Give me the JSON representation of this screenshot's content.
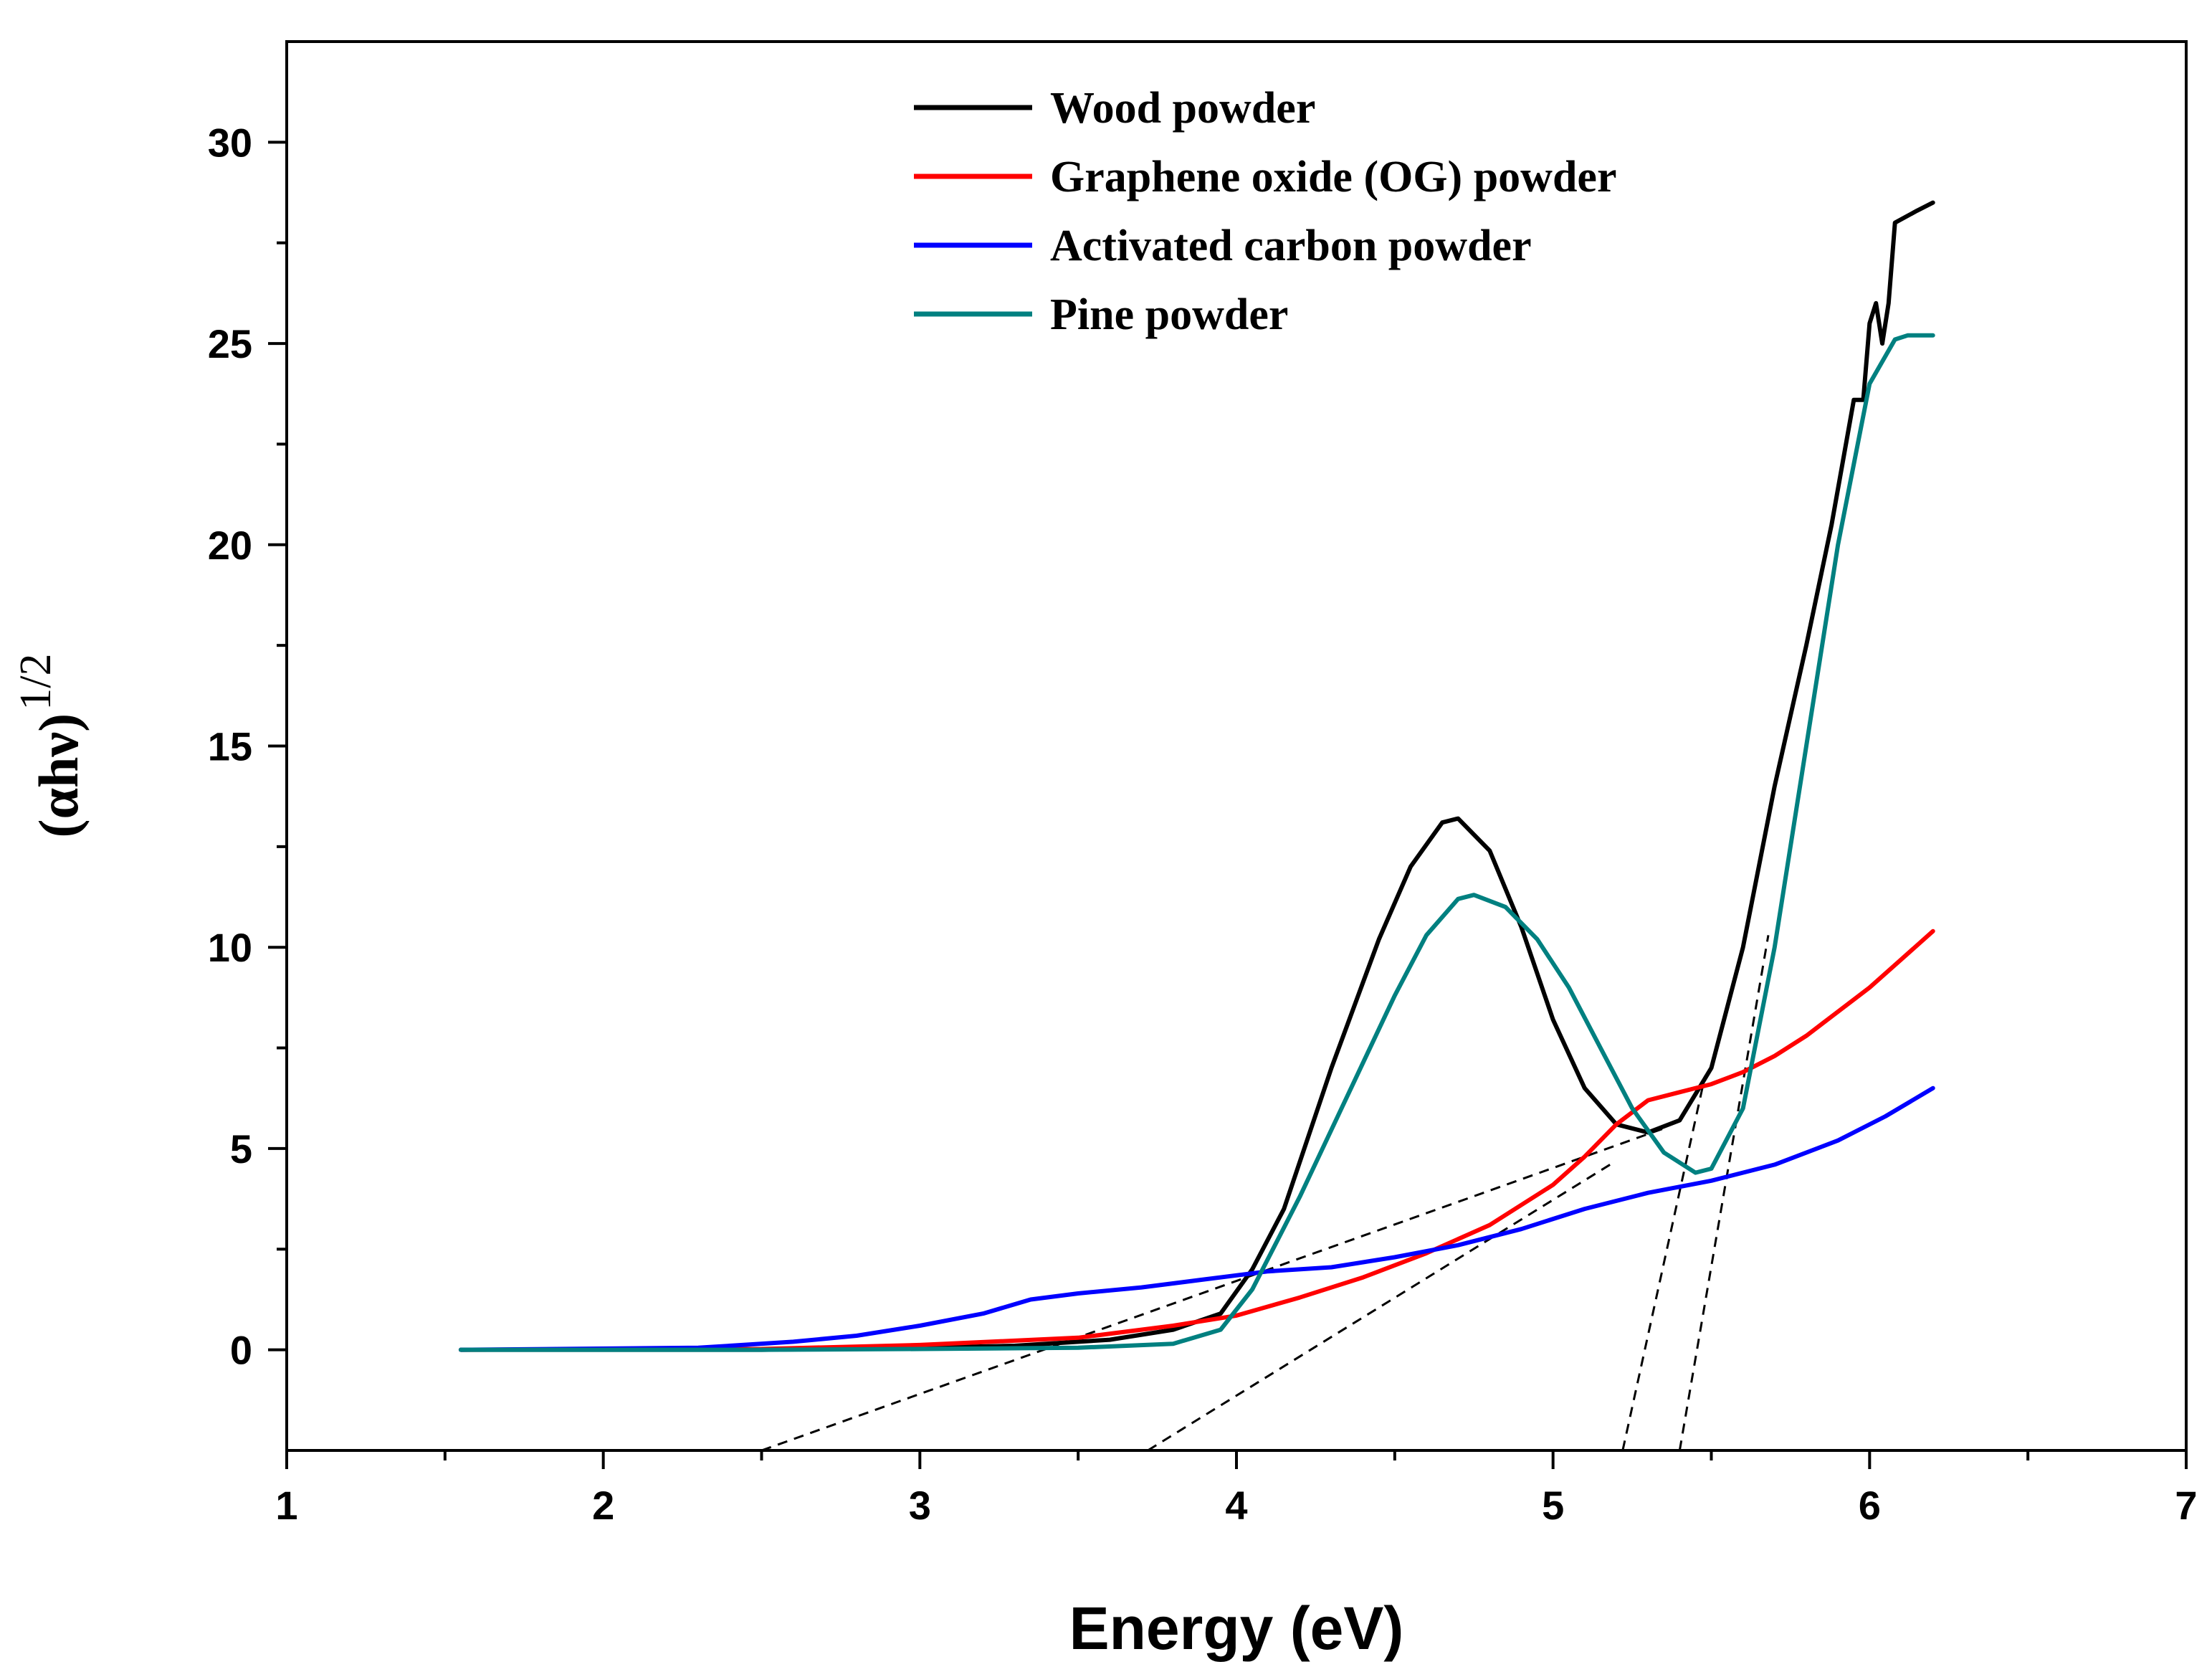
{
  "chart_data": {
    "type": "line",
    "title": "",
    "xlabel": "Energy (eV)",
    "ylabel_base": "(αhν)",
    "ylabel_exponent": "1/2",
    "xlim": [
      1,
      7
    ],
    "ylim": [
      -2.5,
      32.5
    ],
    "x_ticks": [
      1,
      2,
      3,
      4,
      5,
      6,
      7
    ],
    "y_ticks": [
      0,
      5,
      10,
      15,
      20,
      25,
      30
    ],
    "x_tick_labels": [
      "1",
      "2",
      "3",
      "4",
      "5",
      "6",
      "7"
    ],
    "y_tick_labels": [
      "0",
      "5",
      "10",
      "15",
      "20",
      "25",
      "30"
    ],
    "grid": false,
    "legend_position": "top-center",
    "series": [
      {
        "name": "Wood powder",
        "color": "#000000",
        "points": [
          [
            1.55,
            0
          ],
          [
            2.5,
            0
          ],
          [
            3.0,
            0.05
          ],
          [
            3.3,
            0.1
          ],
          [
            3.6,
            0.25
          ],
          [
            3.8,
            0.5
          ],
          [
            3.95,
            0.9
          ],
          [
            4.05,
            2.0
          ],
          [
            4.15,
            3.5
          ],
          [
            4.3,
            7.0
          ],
          [
            4.45,
            10.2
          ],
          [
            4.55,
            12.0
          ],
          [
            4.65,
            13.1
          ],
          [
            4.7,
            13.2
          ],
          [
            4.8,
            12.4
          ],
          [
            4.9,
            10.5
          ],
          [
            5.0,
            8.2
          ],
          [
            5.1,
            6.5
          ],
          [
            5.2,
            5.6
          ],
          [
            5.3,
            5.4
          ],
          [
            5.4,
            5.7
          ],
          [
            5.5,
            7.0
          ],
          [
            5.6,
            10.0
          ],
          [
            5.7,
            14.0
          ],
          [
            5.8,
            17.5
          ],
          [
            5.88,
            20.5
          ],
          [
            5.95,
            23.6
          ],
          [
            5.98,
            23.6
          ],
          [
            6.0,
            25.5
          ],
          [
            6.02,
            26.0
          ],
          [
            6.04,
            25.0
          ],
          [
            6.06,
            26.0
          ],
          [
            6.08,
            28.0
          ],
          [
            6.15,
            28.3
          ],
          [
            6.2,
            28.5
          ]
        ]
      },
      {
        "name": "Graphene oxide (OG) powder",
        "color": "#ff0000",
        "points": [
          [
            1.55,
            0
          ],
          [
            2.5,
            0.02
          ],
          [
            3.0,
            0.12
          ],
          [
            3.5,
            0.3
          ],
          [
            3.8,
            0.6
          ],
          [
            4.0,
            0.85
          ],
          [
            4.2,
            1.3
          ],
          [
            4.4,
            1.8
          ],
          [
            4.6,
            2.4
          ],
          [
            4.8,
            3.1
          ],
          [
            5.0,
            4.1
          ],
          [
            5.1,
            4.8
          ],
          [
            5.2,
            5.6
          ],
          [
            5.3,
            6.2
          ],
          [
            5.4,
            6.4
          ],
          [
            5.5,
            6.6
          ],
          [
            5.6,
            6.9
          ],
          [
            5.7,
            7.3
          ],
          [
            5.8,
            7.8
          ],
          [
            5.9,
            8.4
          ],
          [
            6.0,
            9.0
          ],
          [
            6.1,
            9.7
          ],
          [
            6.2,
            10.4
          ]
        ]
      },
      {
        "name": "Activated carbon powder",
        "color": "#0000ff",
        "points": [
          [
            1.55,
            0
          ],
          [
            2.3,
            0.05
          ],
          [
            2.6,
            0.2
          ],
          [
            2.8,
            0.35
          ],
          [
            3.0,
            0.6
          ],
          [
            3.2,
            0.9
          ],
          [
            3.35,
            1.25
          ],
          [
            3.5,
            1.4
          ],
          [
            3.7,
            1.55
          ],
          [
            3.9,
            1.75
          ],
          [
            4.1,
            1.95
          ],
          [
            4.3,
            2.05
          ],
          [
            4.5,
            2.3
          ],
          [
            4.7,
            2.6
          ],
          [
            4.9,
            3.0
          ],
          [
            5.1,
            3.5
          ],
          [
            5.3,
            3.9
          ],
          [
            5.5,
            4.2
          ],
          [
            5.7,
            4.6
          ],
          [
            5.9,
            5.2
          ],
          [
            6.05,
            5.8
          ],
          [
            6.2,
            6.5
          ]
        ]
      },
      {
        "name": "Pine powder",
        "color": "#008080",
        "points": [
          [
            1.55,
            0
          ],
          [
            2.5,
            0
          ],
          [
            3.0,
            0.02
          ],
          [
            3.5,
            0.05
          ],
          [
            3.8,
            0.15
          ],
          [
            3.95,
            0.5
          ],
          [
            4.05,
            1.5
          ],
          [
            4.2,
            3.8
          ],
          [
            4.35,
            6.3
          ],
          [
            4.5,
            8.8
          ],
          [
            4.6,
            10.3
          ],
          [
            4.7,
            11.2
          ],
          [
            4.75,
            11.3
          ],
          [
            4.85,
            11.0
          ],
          [
            4.95,
            10.2
          ],
          [
            5.05,
            9.0
          ],
          [
            5.15,
            7.5
          ],
          [
            5.25,
            6.0
          ],
          [
            5.35,
            4.9
          ],
          [
            5.45,
            4.4
          ],
          [
            5.5,
            4.5
          ],
          [
            5.6,
            6.0
          ],
          [
            5.7,
            10.0
          ],
          [
            5.8,
            15.0
          ],
          [
            5.9,
            20.0
          ],
          [
            6.0,
            24.0
          ],
          [
            6.08,
            25.1
          ],
          [
            6.12,
            25.2
          ],
          [
            6.2,
            25.2
          ]
        ]
      }
    ],
    "tangent_lines": [
      [
        [
          2.5,
          -2.5
        ],
        [
          5.35,
          5.5
        ]
      ],
      [
        [
          3.72,
          -2.5
        ],
        [
          5.18,
          4.6
        ]
      ],
      [
        [
          5.22,
          -2.5
        ],
        [
          5.48,
          6.8
        ]
      ],
      [
        [
          5.4,
          -2.5
        ],
        [
          5.68,
          10.3
        ]
      ]
    ]
  }
}
